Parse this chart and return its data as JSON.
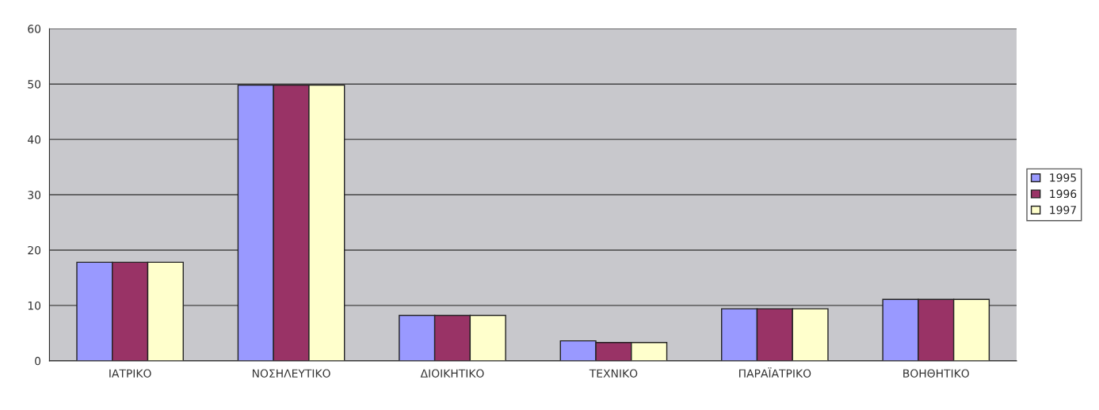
{
  "chart_data": {
    "type": "bar",
    "categories": [
      "ΙΑΤΡΙΚΟ",
      "ΝΟΣΗΛΕΥΤΙΚΟ",
      "ΔΙΟΙΚΗΤΙΚΟ",
      "ΤΕΧΝΙΚΟ",
      "ΠΑΡΑΪΑΤΡΙΚΟ",
      "ΒΟΗΘΗΤΙΚΟ"
    ],
    "series": [
      {
        "name": "1995",
        "color": "#9999ff",
        "values": [
          17.8,
          49.8,
          8.2,
          3.6,
          9.4,
          11.1
        ]
      },
      {
        "name": "1996",
        "color": "#993366",
        "values": [
          17.8,
          49.8,
          8.2,
          3.3,
          9.4,
          11.1
        ]
      },
      {
        "name": "1997",
        "color": "#ffffcc",
        "values": [
          17.8,
          49.8,
          8.2,
          3.3,
          9.4,
          11.1
        ]
      }
    ],
    "ylim": [
      0,
      60
    ],
    "yticks": [
      0,
      10,
      20,
      30,
      40,
      50,
      60
    ],
    "grid": "y",
    "legend": "right"
  }
}
